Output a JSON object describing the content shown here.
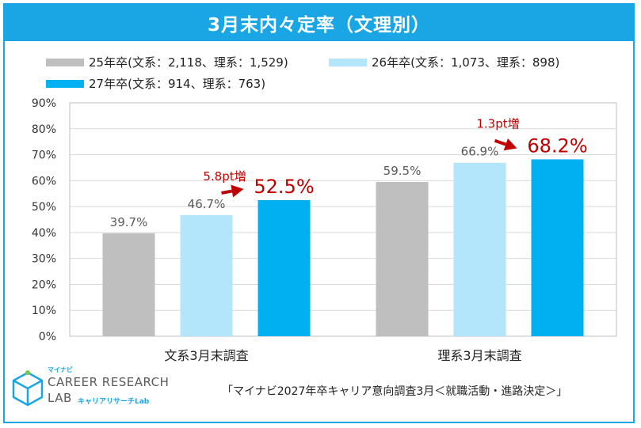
{
  "title": "3月末内々定率（文理別）",
  "chart_data": {
    "type": "bar",
    "categories": [
      "文系3月末調査",
      "理系3月末調査"
    ],
    "series": [
      {
        "name": "25年卒(文系：2,118、理系：1,529)",
        "values": [
          39.7,
          59.5
        ],
        "labels": [
          "39.7%",
          "59.5%"
        ],
        "color": "#bfbfbf"
      },
      {
        "name": "26年卒(文系：1,073、理系：898)",
        "values": [
          46.7,
          66.9
        ],
        "labels": [
          "46.7%",
          "66.9%"
        ],
        "color": "#b3e5fb"
      },
      {
        "name": "27年卒(文系：914、理系：763)",
        "values": [
          52.5,
          68.2
        ],
        "labels": [
          "52.5%",
          "68.2%"
        ],
        "color": "#00b0f0"
      }
    ],
    "ylim": [
      0,
      90
    ],
    "yticks": [
      "0%",
      "10%",
      "20%",
      "30%",
      "40%",
      "50%",
      "60%",
      "70%",
      "80%",
      "90%"
    ],
    "grid": true,
    "legend": "top",
    "annotations": [
      "5.8pt増",
      "1.3pt増"
    ],
    "highlight_color": "#c00000"
  },
  "logo": {
    "line1": "マイナビ",
    "line2": "CAREER RESEARCH",
    "line3": "LAB",
    "line4": "キャリアリサーチLab"
  },
  "source": "「マイナビ2027年卒キャリア意向調査3月＜就職活動・進路決定＞」"
}
